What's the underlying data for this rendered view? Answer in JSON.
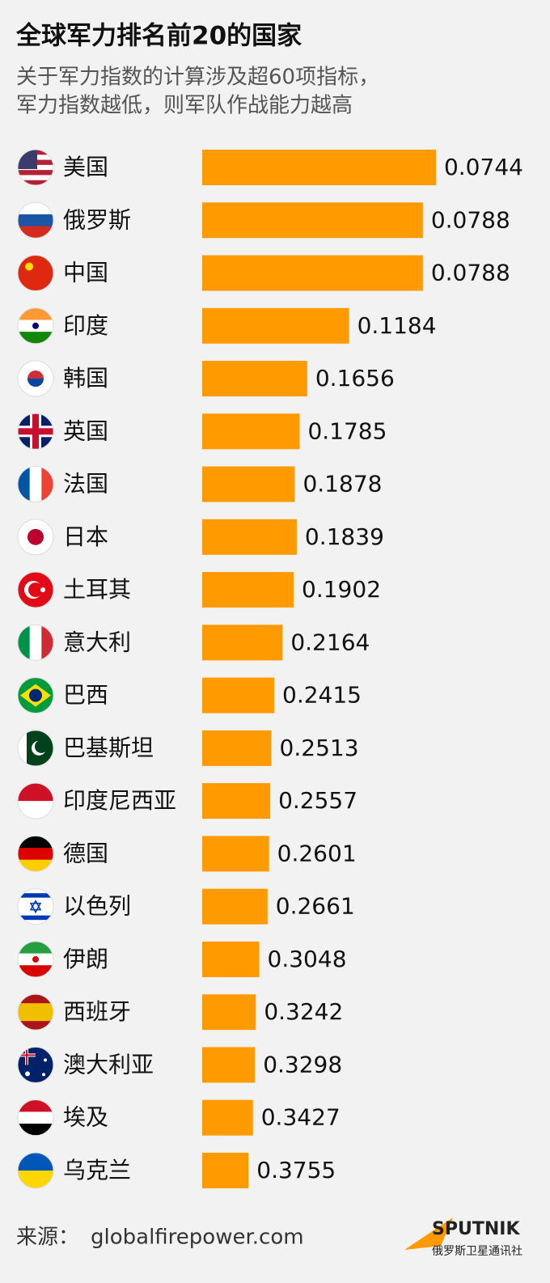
{
  "chart_data": {
    "type": "bar",
    "orientation": "horizontal",
    "scale": "reciprocal",
    "title": "全球军力排名前20的国家",
    "subtitle": [
      "关于军力指数的计算涉及超60项指标，",
      "军力指数越低，则军队作战能力越高"
    ],
    "categories": [
      "美国",
      "俄罗斯",
      "中国",
      "印度",
      "韩国",
      "英国",
      "法国",
      "日本",
      "土耳其",
      "意大利",
      "巴西",
      "巴基斯坦",
      "印度尼西亚",
      "德国",
      "以色列",
      "伊朗",
      "西班牙",
      "澳大利亚",
      "埃及",
      "乌克兰"
    ],
    "values": [
      0.0744,
      0.0788,
      0.0788,
      0.1184,
      0.1656,
      0.1785,
      0.1878,
      0.1839,
      0.1902,
      0.2164,
      0.2415,
      0.2513,
      0.2557,
      0.2601,
      0.2661,
      0.3048,
      0.3242,
      0.3298,
      0.3427,
      0.3755
    ],
    "color": "#ff9a00",
    "source_label": "来源：",
    "source": "globalfirepower.com",
    "brand": "SPUTNIK",
    "brand_sub": "俄罗斯卫星通讯社"
  }
}
